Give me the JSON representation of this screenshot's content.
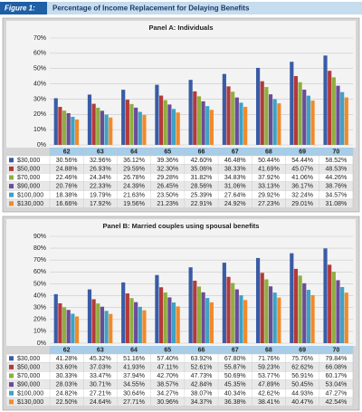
{
  "figure": {
    "label": "Figure 1:",
    "title": "Percentage of Income Replacement for Delaying Benefits"
  },
  "chart_data": [
    {
      "type": "bar",
      "title": "Panel A: Individuals",
      "categories": [
        "62",
        "63",
        "64",
        "65",
        "66",
        "67",
        "68",
        "69",
        "70"
      ],
      "ylim": [
        0,
        70
      ],
      "yticks": [
        {
          "value": 0,
          "label": "0%"
        },
        {
          "value": 10,
          "label": "10%"
        },
        {
          "value": 20,
          "label": "20%"
        },
        {
          "value": 30,
          "label": "30%"
        },
        {
          "value": 40,
          "label": "40%"
        },
        {
          "value": 50,
          "label": "50%"
        },
        {
          "value": 60,
          "label": "60%"
        },
        {
          "value": 70,
          "label": "70%"
        }
      ],
      "grid": true,
      "series": [
        {
          "name": "$30,000",
          "color": "#3a5ba6",
          "values": [
            30.56,
            32.96,
            36.12,
            39.36,
            42.6,
            46.48,
            50.44,
            54.44,
            58.52
          ],
          "value_labels": [
            "30.56%",
            "32.96%",
            "36.12%",
            "39.36%",
            "42.60%",
            "46.48%",
            "50.44%",
            "54.44%",
            "58.52%"
          ]
        },
        {
          "name": "$50,000",
          "color": "#b33a3a",
          "values": [
            24.88,
            26.93,
            29.59,
            32.3,
            35.06,
            38.33,
            41.69,
            45.07,
            48.53
          ],
          "value_labels": [
            "24.88%",
            "26.93%",
            "29.59%",
            "32.30%",
            "35.06%",
            "38.33%",
            "41.69%",
            "45.07%",
            "48.53%"
          ]
        },
        {
          "name": "$70,000",
          "color": "#8fae3e",
          "values": [
            22.46,
            24.34,
            26.78,
            29.28,
            31.82,
            34.83,
            37.92,
            41.06,
            44.26
          ],
          "value_labels": [
            "22.46%",
            "24.34%",
            "26.78%",
            "29.28%",
            "31.82%",
            "34.83%",
            "37.92%",
            "41.06%",
            "44.26%"
          ]
        },
        {
          "name": "$90,000",
          "color": "#6a4c99",
          "values": [
            20.76,
            22.33,
            24.39,
            26.45,
            28.56,
            31.06,
            33.13,
            36.17,
            38.76
          ],
          "value_labels": [
            "20.76%",
            "22.33%",
            "24.39%",
            "26.45%",
            "28.56%",
            "31.06%",
            "33.13%",
            "36.17%",
            "38.76%"
          ]
        },
        {
          "name": "$100,000",
          "color": "#3ea2c4",
          "values": [
            18.38,
            19.79,
            21.63,
            23.5,
            25.39,
            27.64,
            29.92,
            32.24,
            34.57
          ],
          "value_labels": [
            "18.38%",
            "19.79%",
            "21.63%",
            "23.50%",
            "25.39%",
            "27.64%",
            "29.92%",
            "32.24%",
            "34.57%"
          ]
        },
        {
          "name": "$130,000",
          "color": "#f08a2b",
          "values": [
            16.66,
            17.92,
            19.56,
            21.23,
            22.91,
            24.92,
            27.23,
            29.01,
            31.08
          ],
          "value_labels": [
            "16.66%",
            "17.92%",
            "19.56%",
            "21.23%",
            "22.91%",
            "24.92%",
            "27.23%",
            "29.01%",
            "31.08%"
          ]
        }
      ]
    },
    {
      "type": "bar",
      "title": "Panel B: Married couples using spousal benefits",
      "categories": [
        "62",
        "63",
        "64",
        "65",
        "66",
        "67",
        "68",
        "69",
        "70"
      ],
      "ylim": [
        0,
        90
      ],
      "yticks": [
        {
          "value": 0,
          "label": "0%"
        },
        {
          "value": 10,
          "label": "10%"
        },
        {
          "value": 20,
          "label": "20%"
        },
        {
          "value": 30,
          "label": "30%"
        },
        {
          "value": 40,
          "label": "40%"
        },
        {
          "value": 50,
          "label": "50%"
        },
        {
          "value": 60,
          "label": "60%"
        },
        {
          "value": 70,
          "label": "70%"
        },
        {
          "value": 80,
          "label": "80%"
        },
        {
          "value": 90,
          "label": "90%"
        }
      ],
      "grid": true,
      "series": [
        {
          "name": "$30,000",
          "color": "#3a5ba6",
          "values": [
            41.28,
            45.32,
            51.16,
            57.4,
            63.92,
            67.8,
            71.76,
            75.76,
            79.84
          ],
          "value_labels": [
            "41.28%",
            "45.32%",
            "51.16%",
            "57.40%",
            "63.92%",
            "67.80%",
            "71.76%",
            "75.76%",
            "79.84%"
          ]
        },
        {
          "name": "$50,000",
          "color": "#b33a3a",
          "values": [
            33.6,
            37.03,
            41.93,
            47.11,
            52.61,
            55.87,
            59.23,
            62.62,
            66.08
          ],
          "value_labels": [
            "33.60%",
            "37.03%",
            "41.93%",
            "47.11%",
            "52.61%",
            "55.87%",
            "59.23%",
            "62.62%",
            "66.08%"
          ]
        },
        {
          "name": "$70,000",
          "color": "#8fae3e",
          "values": [
            30.33,
            33.47,
            37.94,
            42.7,
            47.73,
            50.69,
            53.77,
            56.91,
            60.17
          ],
          "value_labels": [
            "30.33%",
            "33.47%",
            "37.94%",
            "42.70%",
            "47.73%",
            "50.69%",
            "53.77%",
            "56.91%",
            "60.17%"
          ]
        },
        {
          "name": "$90,000",
          "color": "#6a4c99",
          "values": [
            28.03,
            30.71,
            34.55,
            38.57,
            42.84,
            45.35,
            47.89,
            50.45,
            53.04
          ],
          "value_labels": [
            "28.03%",
            "30.71%",
            "34.55%",
            "38.57%",
            "42.84%",
            "45.35%",
            "47.89%",
            "50.45%",
            "53.04%"
          ]
        },
        {
          "name": "$100,000",
          "color": "#3ea2c4",
          "values": [
            24.82,
            27.21,
            30.64,
            34.27,
            38.07,
            40.34,
            42.62,
            44.93,
            47.27
          ],
          "value_labels": [
            "24.82%",
            "27.21%",
            "30.64%",
            "34.27%",
            "38.07%",
            "40.34%",
            "42.62%",
            "44.93%",
            "47.27%"
          ]
        },
        {
          "name": "$130,000",
          "color": "#f08a2b",
          "values": [
            22.5,
            24.64,
            27.71,
            30.96,
            34.37,
            36.38,
            38.41,
            40.47,
            42.54
          ],
          "value_labels": [
            "22.50%",
            "24.64%",
            "27.71%",
            "30.96%",
            "34.37%",
            "36.38%",
            "38.41%",
            "40.47%",
            "42.54%"
          ]
        }
      ]
    }
  ]
}
